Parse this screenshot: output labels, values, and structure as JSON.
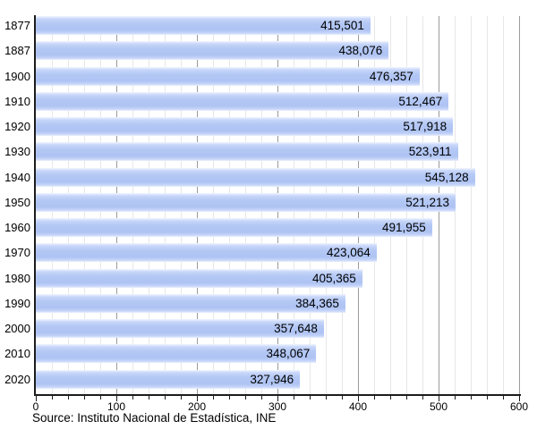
{
  "chart_data": {
    "type": "bar",
    "orientation": "horizontal",
    "title": "",
    "xlabel": "",
    "ylabel": "",
    "categories": [
      "1877",
      "1887",
      "1900",
      "1910",
      "1920",
      "1930",
      "1940",
      "1950",
      "1960",
      "1970",
      "1980",
      "1990",
      "2000",
      "2010",
      "2020"
    ],
    "values": [
      415501,
      438076,
      476357,
      512467,
      517918,
      523911,
      545128,
      521213,
      491955,
      423064,
      405365,
      384365,
      357648,
      348067,
      327946
    ],
    "value_labels": [
      "415,501",
      "438,076",
      "476,357",
      "512,467",
      "517,918",
      "523,911",
      "545,128",
      "521,213",
      "491,955",
      "423,064",
      "405,365",
      "384,365",
      "357,648",
      "348,067",
      "327,946"
    ],
    "x_axis": {
      "min": 0,
      "max": 600,
      "major_step": 100,
      "minor_step": 20,
      "tick_labels": [
        "0",
        "100",
        "200",
        "300",
        "400",
        "500",
        "600"
      ],
      "value_divisor": 1000
    },
    "grid": true,
    "legend": false,
    "source": "Source: Instituto Nacional de Estadística, INE",
    "colors": {
      "bar_fill": "#b2c6f4",
      "bar_highlight": "#f2f6fe",
      "minor_grid": "#e7e7e7",
      "major_grid": "#9b9b9b",
      "axis": "#1c1c1c",
      "text": "#000000",
      "background": "#ffffff"
    }
  }
}
